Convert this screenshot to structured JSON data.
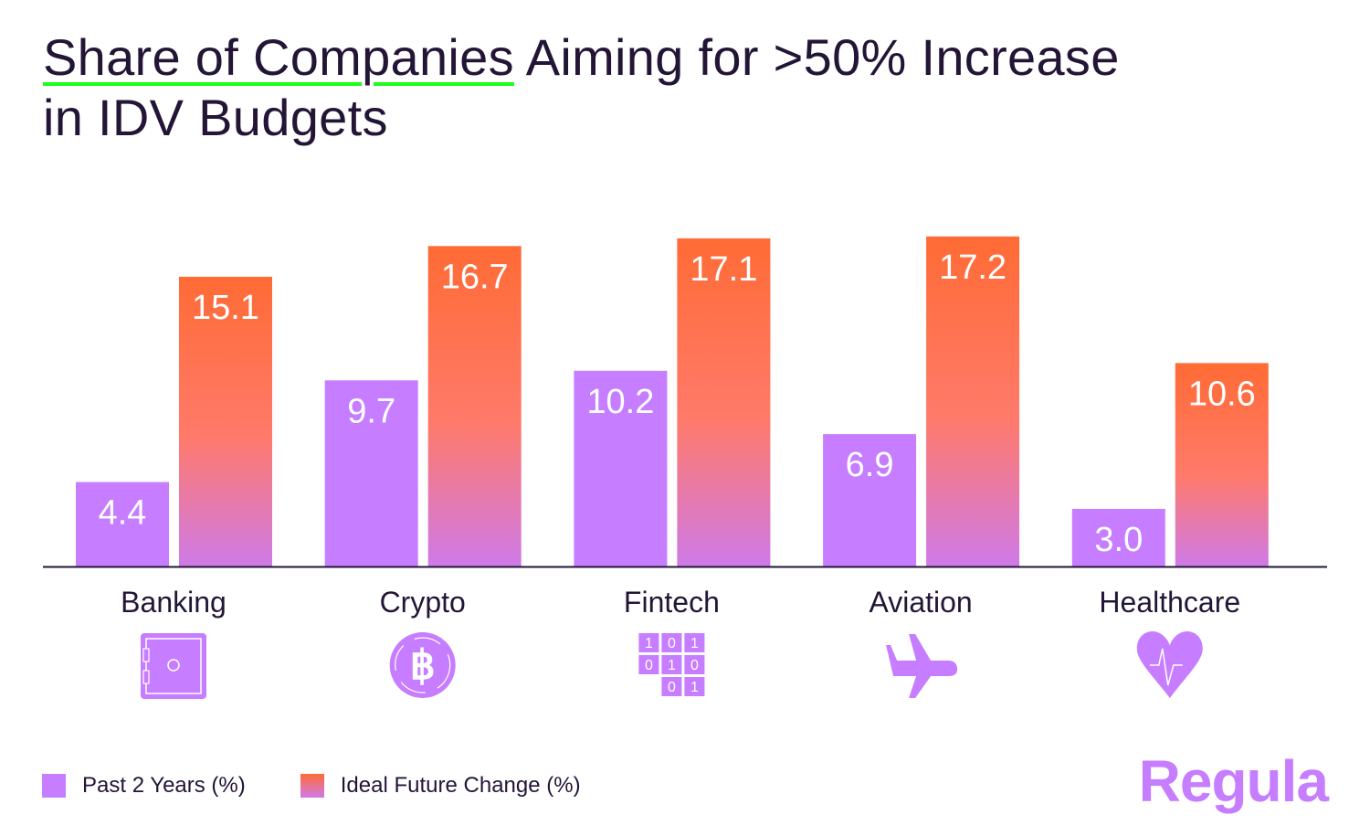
{
  "title_part1": "Share of Com",
  "title_part2": "panies",
  "title_part3": " Aiming for >50% Increase",
  "title_line2": "in IDV Budgets",
  "colors": {
    "past": "#c77dff",
    "future_top": "#ff6b35",
    "future_bottom": "#cf7ae8",
    "text": "#231536",
    "underline": "#1aff1a"
  },
  "chart_data": {
    "type": "bar",
    "title": "Share of Companies Aiming for >50% Increase in IDV Budgets",
    "categories": [
      "Banking",
      "Crypto",
      "Fintech",
      "Aviation",
      "Healthcare"
    ],
    "category_icons": [
      "safe-icon",
      "bitcoin-icon",
      "binary-icon",
      "airplane-icon",
      "heart-pulse-icon"
    ],
    "series": [
      {
        "name": "Past 2 Years (%)",
        "values": [
          4.4,
          9.7,
          10.2,
          6.9,
          3.0
        ],
        "labels": [
          "4.4",
          "9.7",
          "10.2",
          "6.9",
          "3.0"
        ]
      },
      {
        "name": "Ideal Future Change (%)",
        "values": [
          15.1,
          16.7,
          17.1,
          17.2,
          10.6
        ],
        "labels": [
          "15.1",
          "16.7",
          "17.1",
          "17.2",
          "10.6"
        ]
      }
    ],
    "ylim": [
      0,
      20
    ],
    "grid": false,
    "legend": "bottom-left"
  },
  "logo": "Regula"
}
